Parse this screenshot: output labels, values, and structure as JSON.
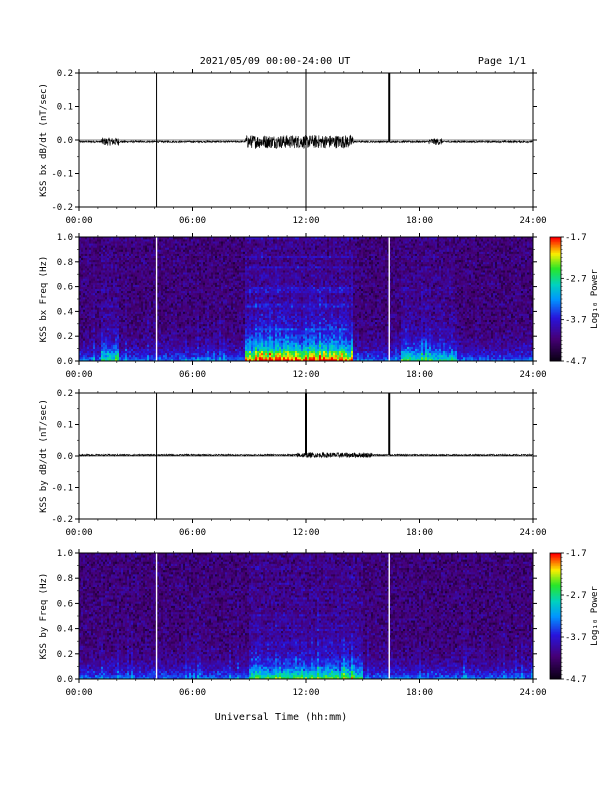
{
  "header": {
    "title": "2021/05/09  00:00-24:00 UT",
    "page": "Page 1/1"
  },
  "xlabel": "Universal Time (hh:mm)",
  "colorbar": {
    "label": "Log₁₀ Power",
    "ticks": [
      "-1.7",
      "-2.7",
      "-3.7",
      "-4.7"
    ],
    "range": [
      -4.7,
      -1.7
    ]
  },
  "chart_data": [
    {
      "type": "line",
      "ylabel": "KSS bx dB/dt (nT/sec)",
      "xlim": [
        0,
        24
      ],
      "ylim": [
        -0.2,
        0.2
      ],
      "xticks": [
        "00:00",
        "06:00",
        "12:00",
        "18:00",
        "24:00"
      ],
      "yticks": [
        "-0.2",
        "-0.1",
        "0.0",
        "0.1",
        "0.2"
      ],
      "baseline": -0.005,
      "spikes": [
        {
          "t": 4.1,
          "min": -0.2,
          "max": 0.2
        },
        {
          "t": 12.0,
          "min": -0.2,
          "max": 0.2
        },
        {
          "t": 16.4,
          "min": -0.005,
          "max": 0.2
        }
      ],
      "activity": [
        {
          "start": 1.2,
          "end": 2.1,
          "amp": 0.012
        },
        {
          "start": 8.8,
          "end": 14.5,
          "amp": 0.02
        },
        {
          "start": 18.5,
          "end": 19.2,
          "amp": 0.01
        }
      ]
    },
    {
      "type": "heatmap",
      "ylabel": "KSS bx Freq (Hz)",
      "xlim": [
        0,
        24
      ],
      "ylim": [
        0,
        1.0
      ],
      "xticks": [
        "00:00",
        "06:00",
        "12:00",
        "18:00",
        "24:00"
      ],
      "yticks": [
        "0.0",
        "0.2",
        "0.4",
        "0.6",
        "0.8",
        "1.0"
      ],
      "zrange": [
        -4.7,
        -1.7
      ],
      "gaps": [
        4.1,
        16.4
      ],
      "active_intervals": [
        {
          "start": 1.2,
          "end": 2.1,
          "level": 0.45
        },
        {
          "start": 8.8,
          "end": 14.5,
          "level": 0.85
        },
        {
          "start": 17.0,
          "end": 20.0,
          "level": 0.35
        }
      ]
    },
    {
      "type": "line",
      "ylabel": "KSS by dB/dt (nT/sec)",
      "xlim": [
        0,
        24
      ],
      "ylim": [
        -0.2,
        0.2
      ],
      "xticks": [
        "00:00",
        "06:00",
        "12:00",
        "18:00",
        "24:00"
      ],
      "yticks": [
        "-0.2",
        "-0.1",
        "0.0",
        "0.1",
        "0.2"
      ],
      "baseline": 0.003,
      "spikes": [
        {
          "t": 4.1,
          "min": -0.2,
          "max": 0.2
        },
        {
          "t": 12.0,
          "min": 0.003,
          "max": 0.2
        },
        {
          "t": 16.4,
          "min": 0.003,
          "max": 0.2
        }
      ],
      "activity": [
        {
          "start": 11.5,
          "end": 15.5,
          "amp": 0.008
        }
      ]
    },
    {
      "type": "heatmap",
      "ylabel": "KSS by Freq (Hz)",
      "xlim": [
        0,
        24
      ],
      "ylim": [
        0,
        1.0
      ],
      "xticks": [
        "00:00",
        "06:00",
        "12:00",
        "18:00",
        "24:00"
      ],
      "yticks": [
        "0.0",
        "0.2",
        "0.4",
        "0.6",
        "0.8",
        "1.0"
      ],
      "zrange": [
        -4.7,
        -1.7
      ],
      "gaps": [
        4.1,
        16.4
      ],
      "active_intervals": [
        {
          "start": 9.0,
          "end": 15.0,
          "level": 0.45
        }
      ]
    }
  ]
}
